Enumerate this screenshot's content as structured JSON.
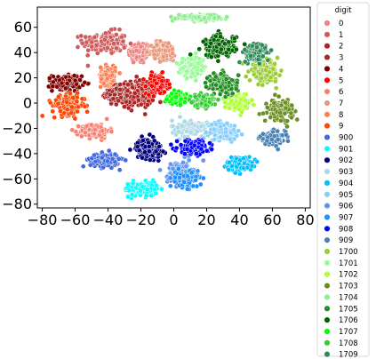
{
  "chart_data": {
    "type": "scatter",
    "title": "",
    "xlabel": "",
    "ylabel": "",
    "xlim": [
      -83,
      83
    ],
    "ylim": [
      -83,
      76
    ],
    "xticks": [
      -80,
      -60,
      -40,
      -20,
      0,
      20,
      40,
      60,
      80
    ],
    "yticks": [
      -80,
      -60,
      -40,
      -20,
      0,
      20,
      40,
      60
    ],
    "xtick_labels": [
      "−80",
      "−60",
      "−40",
      "−20",
      "0",
      "20",
      "40",
      "60",
      "80"
    ],
    "ytick_labels": [
      "−80",
      "−60",
      "−40",
      "−20",
      "0",
      "20",
      "40",
      "60"
    ],
    "grid": false,
    "legend": {
      "title": "digit",
      "placement": "outside-right"
    },
    "series": [
      {
        "name": "0",
        "color": "#f08080",
        "cluster": {
          "cx": -21,
          "cy": 40,
          "sx": 6,
          "sy": 8
        }
      },
      {
        "name": "1",
        "color": "#cd5c5c",
        "cluster": {
          "cx": -42,
          "cy": 48,
          "sx": 12,
          "sy": 8
        }
      },
      {
        "name": "2",
        "color": "#b22222",
        "cluster": {
          "cx": -22,
          "cy": 7,
          "sx": 9,
          "sy": 10
        }
      },
      {
        "name": "3",
        "color": "#a52a2a",
        "cluster": {
          "cx": -35,
          "cy": 8,
          "sx": 6,
          "sy": 6
        }
      },
      {
        "name": "4",
        "color": "#800000",
        "cluster": {
          "cx": -65,
          "cy": 16,
          "sx": 8,
          "sy": 6
        }
      },
      {
        "name": "5",
        "color": "#ff0000",
        "cluster": {
          "cx": -10,
          "cy": 15,
          "sx": 6,
          "sy": 7
        }
      },
      {
        "name": "6",
        "color": "#fa8072",
        "cluster": {
          "cx": -48,
          "cy": -22,
          "sx": 8,
          "sy": 5
        }
      },
      {
        "name": "7",
        "color": "#e9967a",
        "cluster": {
          "cx": -6,
          "cy": 41,
          "sx": 7,
          "sy": 7
        }
      },
      {
        "name": "8",
        "color": "#ff7f50",
        "cluster": {
          "cx": -40,
          "cy": 22,
          "sx": 4,
          "sy": 7
        }
      },
      {
        "name": "9",
        "color": "#ff4500",
        "cluster": {
          "cx": -64,
          "cy": -2,
          "sx": 9,
          "sy": 7
        }
      },
      {
        "name": "900",
        "color": "#4169e1",
        "cluster": {
          "cx": -42,
          "cy": -45,
          "sx": 8,
          "sy": 5
        }
      },
      {
        "name": "901",
        "color": "#00ffff",
        "cluster": {
          "cx": -20,
          "cy": -68,
          "sx": 9,
          "sy": 5
        }
      },
      {
        "name": "902",
        "color": "#000080",
        "cluster": {
          "cx": -15,
          "cy": -36,
          "sx": 7,
          "sy": 7
        }
      },
      {
        "name": "903",
        "color": "#add8e6",
        "cluster": {
          "cx": 10,
          "cy": -20,
          "sx": 10,
          "sy": 6
        }
      },
      {
        "name": "904",
        "color": "#00bfff",
        "cluster": {
          "cx": 40,
          "cy": -48,
          "sx": 7,
          "sy": 5
        }
      },
      {
        "name": "905",
        "color": "#87cefa",
        "cluster": {
          "cx": 30,
          "cy": -22,
          "sx": 8,
          "sy": 6
        }
      },
      {
        "name": "906",
        "color": "#6495ed",
        "cluster": {
          "cx": 4,
          "cy": -55,
          "sx": 7,
          "sy": 8
        }
      },
      {
        "name": "907",
        "color": "#1e90ff",
        "cluster": {
          "cx": 8,
          "cy": -60,
          "sx": 6,
          "sy": 6
        }
      },
      {
        "name": "908",
        "color": "#0000ff",
        "cluster": {
          "cx": 12,
          "cy": -35,
          "sx": 9,
          "sy": 5
        }
      },
      {
        "name": "909",
        "color": "#4682b4",
        "cluster": {
          "cx": 60,
          "cy": -28,
          "sx": 7,
          "sy": 5
        }
      },
      {
        "name": "1700",
        "color": "#9acd32",
        "cluster": {
          "cx": 55,
          "cy": 25,
          "sx": 8,
          "sy": 7
        }
      },
      {
        "name": "1701",
        "color": "#98fb98",
        "cluster": {
          "cx": 12,
          "cy": 28,
          "sx": 7,
          "sy": 7
        }
      },
      {
        "name": "1702",
        "color": "#adff2f",
        "cluster": {
          "cx": 40,
          "cy": 0,
          "sx": 6,
          "sy": 5
        }
      },
      {
        "name": "1703",
        "color": "#6b8e23",
        "cluster": {
          "cx": 65,
          "cy": -5,
          "sx": 7,
          "sy": 7
        }
      },
      {
        "name": "1704",
        "color": "#90ee90",
        "cluster": {
          "cx": 15,
          "cy": 68,
          "sx": 12,
          "sy": 2
        }
      },
      {
        "name": "1705",
        "color": "#228b22",
        "cluster": {
          "cx": 30,
          "cy": 15,
          "sx": 8,
          "sy": 8
        }
      },
      {
        "name": "1706",
        "color": "#006400",
        "cluster": {
          "cx": 28,
          "cy": 45,
          "sx": 9,
          "sy": 8
        }
      },
      {
        "name": "1707",
        "color": "#00ff00",
        "cluster": {
          "cx": 2,
          "cy": 4,
          "sx": 5,
          "sy": 4
        }
      },
      {
        "name": "1708",
        "color": "#32cd32",
        "cluster": {
          "cx": 18,
          "cy": 2,
          "sx": 5,
          "sy": 4
        }
      },
      {
        "name": "1709",
        "color": "#2e8b57",
        "cluster": {
          "cx": 50,
          "cy": 40,
          "sx": 7,
          "sy": 7
        }
      }
    ]
  }
}
